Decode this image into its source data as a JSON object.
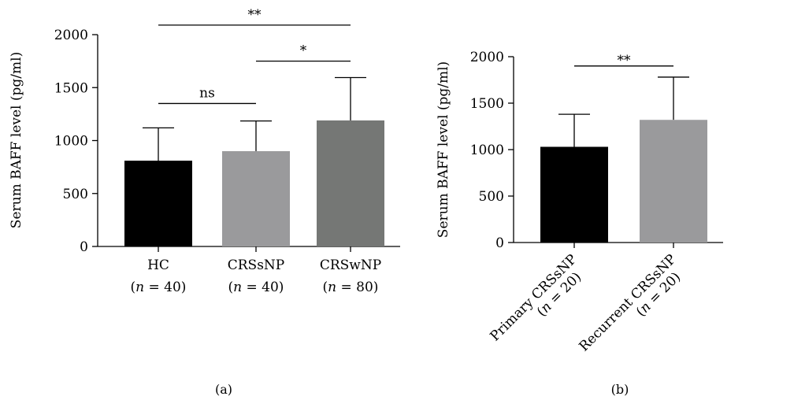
{
  "chart_data": [
    {
      "type": "bar",
      "panel_label": "(a)",
      "ylabel": "Serum BAFF level (pg/ml)",
      "ylim": [
        0,
        2000
      ],
      "yticks": [
        0,
        500,
        1000,
        1500,
        2000
      ],
      "categories": [
        {
          "name": "HC",
          "n_prefix": "(",
          "n_var": "n",
          "n_rest": " = 40)"
        },
        {
          "name": "CRSsNP",
          "n_prefix": "(",
          "n_var": "n",
          "n_rest": " = 40)"
        },
        {
          "name": "CRSwNP",
          "n_prefix": "(",
          "n_var": "n",
          "n_rest": " = 80)"
        }
      ],
      "values": [
        810,
        900,
        1190
      ],
      "error_upper": [
        1120,
        1185,
        1595
      ],
      "bar_colors": [
        "#000000",
        "#9a9a9c",
        "#757775"
      ],
      "significance": [
        {
          "from": 0,
          "to": 1,
          "label": "ns",
          "level": 1350
        },
        {
          "from": 1,
          "to": 2,
          "label": "*",
          "level": 1750
        },
        {
          "from": 0,
          "to": 2,
          "label": "**",
          "level": 2090
        }
      ]
    },
    {
      "type": "bar",
      "panel_label": "(b)",
      "ylabel": "Serum BAFF level (pg/ml)",
      "ylim": [
        0,
        2000
      ],
      "yticks": [
        0,
        500,
        1000,
        1500,
        2000
      ],
      "categories": [
        {
          "name": "Primary CRSsNP",
          "n_prefix": "(",
          "n_var": "n",
          "n_rest": " = 20)"
        },
        {
          "name": "Recurrent CRSsNP",
          "n_prefix": "(",
          "n_var": "n",
          "n_rest": " = 20)"
        }
      ],
      "values": [
        1030,
        1320
      ],
      "error_upper": [
        1380,
        1780
      ],
      "bar_colors": [
        "#000000",
        "#9a9a9c"
      ],
      "significance": [
        {
          "from": 0,
          "to": 1,
          "label": "**",
          "level": 1900
        }
      ]
    }
  ]
}
